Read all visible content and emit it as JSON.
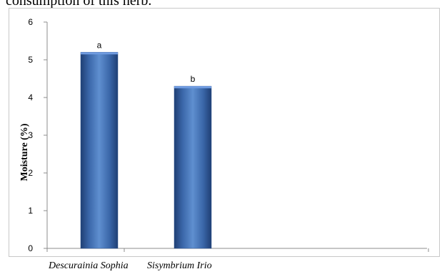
{
  "page": {
    "top_text": "consumption of this herb."
  },
  "chart_data": {
    "type": "bar",
    "categories": [
      "Descurainia Sophia",
      "Sisymbrium Irio"
    ],
    "values": [
      5.2,
      4.3
    ],
    "data_labels": [
      "a",
      "b"
    ],
    "title": "",
    "xlabel": "",
    "ylabel": "Moisture (%)",
    "ylim": [
      0,
      6
    ],
    "yticks": [
      0,
      1,
      2,
      3,
      4,
      5,
      6
    ],
    "grid": false,
    "legend": "none",
    "bar_color": "#3a66a8"
  }
}
